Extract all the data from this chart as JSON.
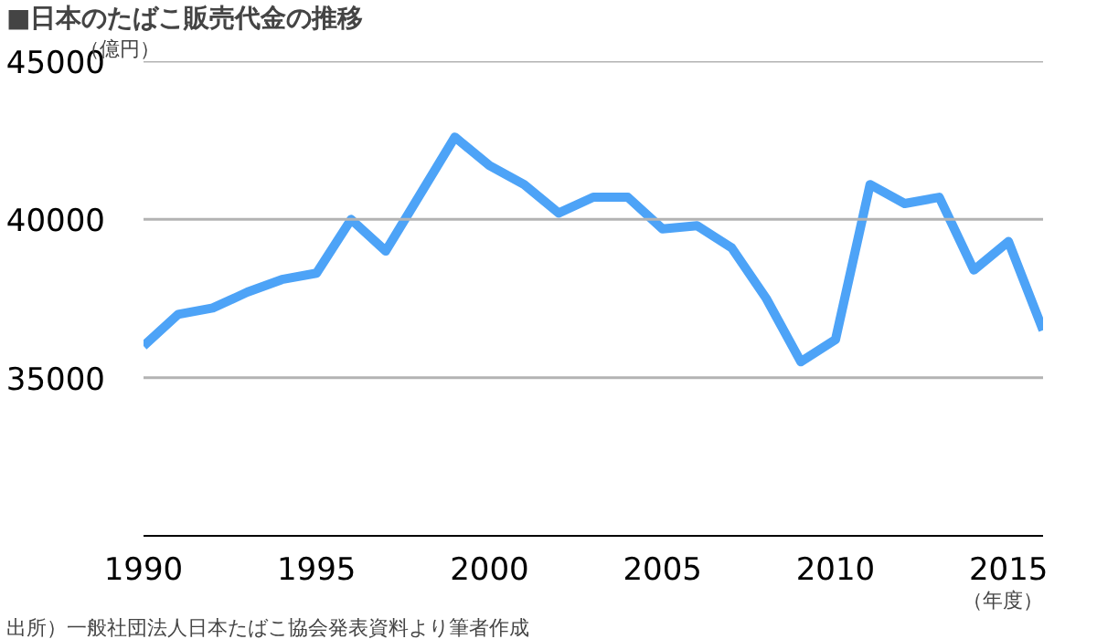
{
  "chart_data": {
    "type": "line",
    "title": "■日本のたばこ販売代金の推移",
    "ylabel": "（億円）",
    "xlabel": "（年度）",
    "annotations": [
      "出所）一般社団法人日本たばこ協会発表資料より筆者作成"
    ],
    "x": [
      1990,
      1991,
      1992,
      1993,
      1994,
      1995,
      1996,
      1997,
      1998,
      1999,
      2000,
      2001,
      2002,
      2003,
      2004,
      2005,
      2006,
      2007,
      2008,
      2009,
      2010,
      2011,
      2012,
      2013,
      2014,
      2015,
      2016
    ],
    "series": [
      {
        "color": "#4da3f7",
        "values": [
          36000,
          37000,
          37200,
          37700,
          38100,
          38300,
          40000,
          39000,
          40800,
          42600,
          41700,
          41100,
          40200,
          40700,
          40700,
          39700,
          39800,
          39100,
          37500,
          35500,
          36200,
          41100,
          40500,
          40700,
          38400,
          39300,
          36500
        ]
      }
    ],
    "xlim": [
      1990,
      2016
    ],
    "xticks": [
      1990,
      1995,
      2000,
      2005,
      2010,
      2015
    ],
    "ylim": [
      30000,
      45000
    ],
    "yticks": [
      35000,
      40000,
      45000
    ],
    "grid": "y",
    "marker": "none",
    "line_style": "solid"
  }
}
